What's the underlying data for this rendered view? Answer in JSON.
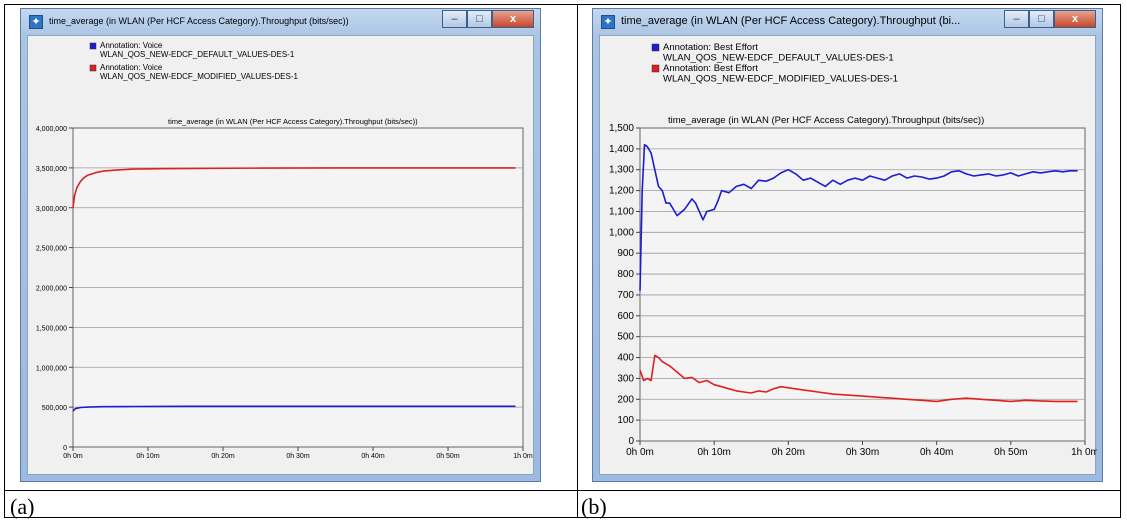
{
  "captions": [
    "(a)",
    "(b)"
  ],
  "windows": [
    {
      "title": "time_average (in WLAN (Per HCF Access Category).Throughput (bits/sec))",
      "controls": [
        "–",
        "□",
        "x"
      ]
    },
    {
      "title": "time_average (in WLAN (Per HCF Access Category).Throughput (bi...",
      "controls": [
        "–",
        "□",
        "x"
      ]
    }
  ],
  "chart_data": [
    {
      "type": "line",
      "title": "time_average (in WLAN (Per HCF Access Category).Throughput (bits/sec))",
      "xlabel": "",
      "ylabel": "",
      "x_ticks": [
        "0h 0m",
        "0h 10m",
        "0h 20m",
        "0h 30m",
        "0h 40m",
        "0h 50m",
        "1h 0m"
      ],
      "y_ticks": [
        "0",
        "500,000",
        "1,000,000",
        "1,500,000",
        "2,000,000",
        "2,500,000",
        "3,000,000",
        "3,500,000",
        "4,000,000"
      ],
      "ylim": [
        0,
        4000000
      ],
      "xlim": [
        0,
        60
      ],
      "grid": true,
      "legend": [
        {
          "label": "Annotation: Voice",
          "sub": "WLAN_QOS_NEW-EDCF_DEFAULT_VALUES-DES-1",
          "color": "#1c1cd0"
        },
        {
          "label": "Annotation: Voice",
          "sub": "WLAN_QOS_NEW-EDCF_MODIFIED_VALUES-DES-1",
          "color": "#e02020"
        }
      ],
      "series": [
        {
          "color": "#1c1cd0",
          "x": [
            0,
            0.3,
            1,
            2,
            4,
            8,
            15,
            25,
            35,
            45,
            59
          ],
          "y": [
            450000,
            480000,
            495000,
            500000,
            505000,
            508000,
            510000,
            510000,
            510000,
            510000,
            510000
          ]
        },
        {
          "color": "#e02020",
          "x": [
            0,
            0.2,
            0.5,
            1,
            1.5,
            2,
            3,
            4,
            6,
            8,
            12,
            18,
            25,
            35,
            45,
            59
          ],
          "y": [
            3000000,
            3150000,
            3250000,
            3330000,
            3380000,
            3410000,
            3440000,
            3460000,
            3475000,
            3485000,
            3490000,
            3495000,
            3497000,
            3500000,
            3500000,
            3500000
          ]
        }
      ]
    },
    {
      "type": "line",
      "title": "time_average (in WLAN (Per HCF Access Category).Throughput (bits/sec))",
      "xlabel": "",
      "ylabel": "",
      "x_ticks": [
        "0h 0m",
        "0h 10m",
        "0h 20m",
        "0h 30m",
        "0h 40m",
        "0h 50m",
        "1h 0m"
      ],
      "y_ticks": [
        "0",
        "100",
        "200",
        "300",
        "400",
        "500",
        "600",
        "700",
        "800",
        "900",
        "1,000",
        "1,100",
        "1,200",
        "1,300",
        "1,400",
        "1,500"
      ],
      "ylim": [
        0,
        1500
      ],
      "xlim": [
        0,
        60
      ],
      "grid": true,
      "legend": [
        {
          "label": "Annotation: Best Effort",
          "sub": "WLAN_QOS_NEW-EDCF_DEFAULT_VALUES-DES-1",
          "color": "#1c1cd0"
        },
        {
          "label": "Annotation: Best Effort",
          "sub": "WLAN_QOS_NEW-EDCF_MODIFIED_VALUES-DES-1",
          "color": "#e02020"
        }
      ],
      "series": [
        {
          "color": "#1c1cd0",
          "x": [
            0,
            0.3,
            0.6,
            1,
            1.5,
            2,
            2.5,
            3,
            3.5,
            4,
            5,
            6,
            7,
            7.5,
            8,
            8.5,
            9,
            10,
            10.5,
            11,
            12,
            13,
            14,
            15,
            16,
            17,
            18,
            19,
            20,
            21,
            22,
            23,
            24,
            25,
            26,
            27,
            28,
            29,
            30,
            31,
            32,
            33,
            34,
            35,
            36,
            37,
            38,
            39,
            40,
            41,
            42,
            43,
            44,
            45,
            46,
            47,
            48,
            49,
            50,
            51,
            52,
            53,
            54,
            55,
            56,
            57,
            58,
            59
          ],
          "y": [
            720,
            1200,
            1420,
            1410,
            1380,
            1300,
            1220,
            1200,
            1140,
            1140,
            1080,
            1110,
            1160,
            1140,
            1100,
            1060,
            1100,
            1110,
            1150,
            1200,
            1190,
            1220,
            1230,
            1210,
            1250,
            1245,
            1260,
            1285,
            1300,
            1280,
            1250,
            1260,
            1240,
            1220,
            1250,
            1230,
            1250,
            1260,
            1250,
            1270,
            1260,
            1250,
            1270,
            1280,
            1260,
            1270,
            1265,
            1255,
            1260,
            1270,
            1290,
            1295,
            1280,
            1270,
            1275,
            1280,
            1270,
            1275,
            1285,
            1270,
            1280,
            1290,
            1285,
            1290,
            1295,
            1290,
            1295,
            1295
          ]
        },
        {
          "color": "#e02020",
          "x": [
            0,
            0.5,
            1,
            1.5,
            2,
            2.5,
            3,
            4,
            5,
            6,
            7,
            8,
            9,
            10,
            11,
            12,
            13,
            14,
            15,
            16,
            17,
            18,
            19,
            20,
            22,
            24,
            26,
            28,
            30,
            32,
            34,
            36,
            38,
            40,
            42,
            44,
            46,
            48,
            50,
            52,
            54,
            56,
            58,
            59
          ],
          "y": [
            340,
            290,
            300,
            290,
            410,
            400,
            380,
            360,
            330,
            300,
            305,
            280,
            290,
            270,
            260,
            250,
            240,
            235,
            230,
            240,
            235,
            250,
            260,
            255,
            245,
            235,
            225,
            220,
            215,
            210,
            205,
            200,
            195,
            190,
            200,
            205,
            200,
            195,
            190,
            195,
            192,
            190,
            190,
            190
          ]
        }
      ]
    }
  ]
}
